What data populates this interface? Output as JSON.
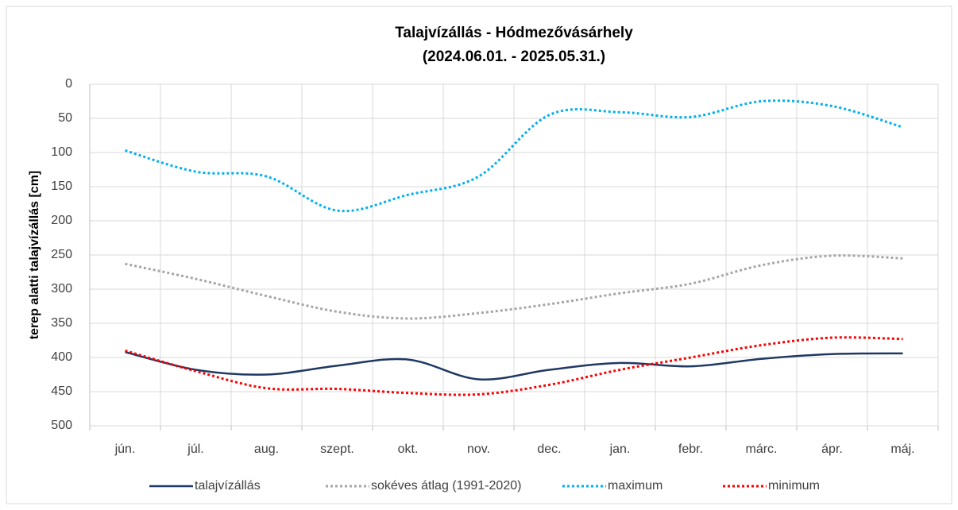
{
  "chart_data": {
    "type": "line",
    "title": "Talajvízállás - Hódmezővásárhely",
    "subtitle": "(2024.06.01. - 2025.05.31.)",
    "y_label": "terep alatti talajvízállás [cm]",
    "categories": [
      "jún.",
      "júl.",
      "aug.",
      "szept.",
      "okt.",
      "nov.",
      "dec.",
      "jan.",
      "febr.",
      "márc.",
      "ápr.",
      "máj."
    ],
    "series": [
      {
        "name": "talajvízállás",
        "color": "#1f3864",
        "style": "solid",
        "values": [
          392,
          418,
          425,
          412,
          403,
          432,
          418,
          408,
          413,
          402,
          395,
          394
        ]
      },
      {
        "name": "sokéves átlag (1991-2020)",
        "color": "#a6a6a6",
        "style": "dotted",
        "values": [
          263,
          285,
          310,
          333,
          343,
          335,
          322,
          306,
          292,
          265,
          251,
          255
        ]
      },
      {
        "name": "maximum",
        "color": "#00b0f0",
        "style": "dotted",
        "values": [
          97,
          128,
          135,
          185,
          162,
          135,
          45,
          41,
          48,
          25,
          32,
          63
        ]
      },
      {
        "name": "minimum",
        "color": "#ff0000",
        "style": "dotted",
        "values": [
          390,
          420,
          445,
          446,
          452,
          454,
          440,
          418,
          400,
          382,
          371,
          373
        ]
      }
    ],
    "ylim": [
      0,
      500
    ],
    "yticks": [
      0,
      50,
      100,
      150,
      200,
      250,
      300,
      350,
      400,
      450,
      500
    ],
    "y_inverted": true,
    "grid": true,
    "legend": "bottom"
  }
}
